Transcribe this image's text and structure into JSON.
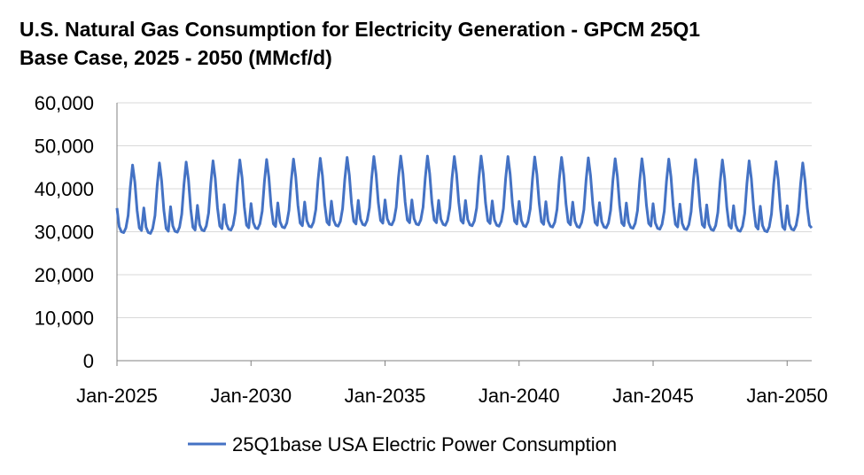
{
  "chart_data": {
    "type": "line",
    "title_line1": "U.S. Natural Gas Consumption for Electricity Generation - GPCM 25Q1",
    "title_line2": "Base Case, 2025 - 2050 (MMcf/d)",
    "xlabel": "",
    "ylabel": "",
    "ylim": [
      0,
      60000
    ],
    "yticks": [
      "0",
      "10,000",
      "20,000",
      "30,000",
      "40,000",
      "50,000",
      "60,000"
    ],
    "xticks": [
      "Jan-2025",
      "Jan-2030",
      "Jan-2035",
      "Jan-2040",
      "Jan-2045",
      "Jan-2050"
    ],
    "x_start": "Jan-2025",
    "x_end": "Dec-2050",
    "grid": "horizontal",
    "legend": "bottom",
    "series": [
      {
        "name": "25Q1base USA Electric Power Consumption",
        "color": "#4472C4",
        "seasonal_profile": [
          35500,
          31200,
          30000,
          29800,
          30900,
          33800,
          40500,
          45500,
          41500,
          35000,
          30900,
          30300
        ],
        "annual_peak": [
          45500,
          46000,
          46200,
          46500,
          46700,
          46800,
          46900,
          47100,
          47300,
          47500,
          47600,
          47600,
          47500,
          47600,
          47500,
          47400,
          47300,
          47200,
          47000,
          47000,
          46900,
          46800,
          46700,
          46500,
          46300,
          46000
        ],
        "annual_base": [
          29800,
          29600,
          29900,
          30200,
          30400,
          30700,
          30900,
          31100,
          31300,
          31500,
          31600,
          31600,
          31500,
          31400,
          31300,
          31200,
          31100,
          31000,
          30900,
          30800,
          30600,
          30500,
          30300,
          30100,
          30000,
          30400
        ]
      }
    ]
  }
}
